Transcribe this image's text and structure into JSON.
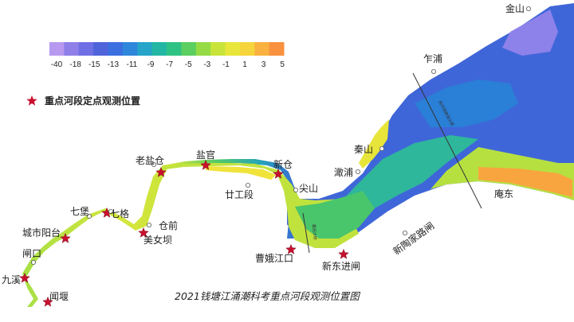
{
  "legend": {
    "label": "重点河段定点观测位置",
    "marker_color": "#c8102e"
  },
  "colorbar": {
    "ticks": [
      "-40",
      "-18",
      "-15",
      "-13",
      "-11",
      "-9",
      "-7",
      "-5",
      "-3",
      "-1",
      "1",
      "3",
      "5"
    ],
    "colors": [
      "#b79af0",
      "#8f7fe8",
      "#6e6fe4",
      "#4f63db",
      "#3b6fe0",
      "#2f87db",
      "#26a4c9",
      "#23b7a3",
      "#2fc285",
      "#5bcf5f",
      "#94db45",
      "#c8e43a",
      "#e8e63a",
      "#f6d43c",
      "#f9b23f",
      "#f9913f"
    ]
  },
  "places": {
    "jinshan": "金山",
    "zhapu": "乍浦",
    "qinshan": "秦山",
    "ganpu": "澉浦",
    "andong": "庵东",
    "xinxiejia": "新陶家路闸",
    "xindongjin": "新东进闸",
    "caoejiang": "曹娥江口",
    "jianshan": "尖山",
    "xincang": "新仓",
    "niangongduan": "廿工段",
    "yanguan": "盐官",
    "laoyancang": "老盐仓",
    "cangqian": "仓前",
    "meinvba": "美女坝",
    "qige": "七格",
    "qibao": "七堡",
    "chengshiyangtai": "城市阳台",
    "zhakou": "闸口",
    "jiuxi": "九溪",
    "wenyan": "闻堰"
  },
  "bridges": {
    "b1": "嘉绍大桥",
    "b2": "杭州湾跨海大桥"
  },
  "title": "2021钱塘江涌潮科考重点河段观测位置图"
}
